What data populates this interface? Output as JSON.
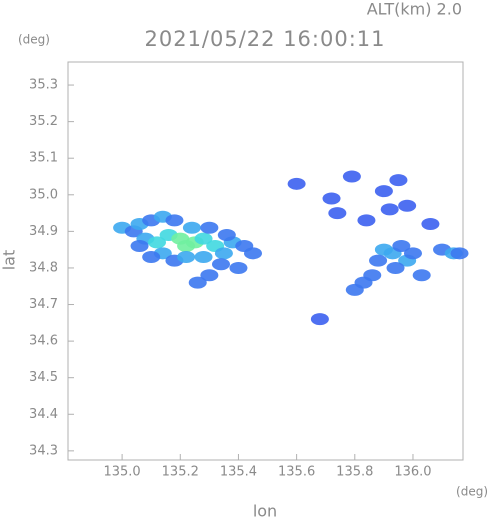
{
  "chart_data": {
    "type": "scatter",
    "title": "2021/05/22 16:00:11",
    "subtitle": "ALT(km)  2.0",
    "x_label": "lon",
    "y_label": "lat",
    "x_unit": "(deg)",
    "y_unit": "(deg)",
    "xlim": [
      134.814,
      136.172
    ],
    "ylim": [
      34.275,
      35.363
    ],
    "xticks": [
      {
        "value": 135,
        "label": "135.0"
      },
      135.2,
      135.4,
      135.6,
      135.8,
      {
        "value": 136,
        "label": "136.0"
      }
    ],
    "yticks": [
      34.3,
      34.4,
      34.5,
      34.6,
      34.7,
      34.8,
      34.9,
      {
        "value": 35,
        "label": "35.0"
      },
      35.1,
      35.2,
      35.3
    ],
    "x": [
      135.0,
      135.04,
      135.06,
      135.1,
      135.14,
      135.18,
      135.08,
      135.12,
      135.16,
      135.2,
      135.22,
      135.25,
      135.28,
      135.24,
      135.3,
      135.32,
      135.35,
      135.38,
      135.42,
      135.45,
      135.14,
      135.18,
      135.22,
      135.28,
      135.34,
      135.4,
      135.3,
      135.26,
      135.1,
      135.06,
      135.36,
      135.6,
      135.72,
      135.79,
      135.84,
      135.9,
      135.95,
      135.92,
      135.98,
      135.74,
      135.9,
      135.93,
      135.96,
      135.98,
      135.94,
      135.88,
      135.86,
      135.83,
      135.8,
      136.0,
      136.06,
      136.1,
      136.14,
      136.16,
      136.03,
      135.68
    ],
    "values": [
      34.91,
      34.9,
      34.92,
      34.93,
      34.94,
      34.93,
      34.88,
      34.87,
      34.89,
      34.88,
      34.86,
      34.87,
      34.88,
      34.91,
      34.91,
      34.86,
      34.84,
      34.87,
      34.86,
      34.84,
      34.84,
      34.82,
      34.83,
      34.83,
      34.81,
      34.8,
      34.78,
      34.76,
      34.83,
      34.86,
      34.89,
      35.03,
      34.99,
      35.05,
      34.93,
      35.01,
      35.04,
      34.96,
      34.97,
      34.95,
      34.85,
      34.84,
      34.86,
      34.82,
      34.8,
      34.82,
      34.78,
      34.76,
      34.74,
      34.84,
      34.92,
      34.85,
      34.84,
      34.84,
      34.78,
      34.66
    ],
    "colors": [
      "#3ca8f0",
      "#3c78f0",
      "#3ca8f0",
      "#3c78f0",
      "#3ca8f0",
      "#3c78f0",
      "#3ca8f0",
      "#40d8e0",
      "#40d8e0",
      "#70f0a0",
      "#70f0a0",
      "#70f0a0",
      "#40d8e0",
      "#3ca8f0",
      "#3c78f0",
      "#40d8e0",
      "#3ca8f0",
      "#3ca8f0",
      "#3c78f0",
      "#3c78f0",
      "#3ca8f0",
      "#3c78f0",
      "#3ca8f0",
      "#3ca8f0",
      "#3c78f0",
      "#3c78f0",
      "#3c78f0",
      "#3c78f0",
      "#3c78f0",
      "#3c78f0",
      "#3c78f0",
      "#3c60f0",
      "#3c60f0",
      "#3c60f0",
      "#3c60f0",
      "#3c60f0",
      "#3c60f0",
      "#3c60f0",
      "#3c60f0",
      "#3c60f0",
      "#3ca8f0",
      "#3ca8f0",
      "#3c78f0",
      "#3ca8f0",
      "#3c78f0",
      "#3c78f0",
      "#3c78f0",
      "#3c78f0",
      "#3c78f0",
      "#3c78f0",
      "#3c60f0",
      "#3c78f0",
      "#3ca8f0",
      "#3c78f0",
      "#3c78f0",
      "#3c60f0"
    ]
  }
}
